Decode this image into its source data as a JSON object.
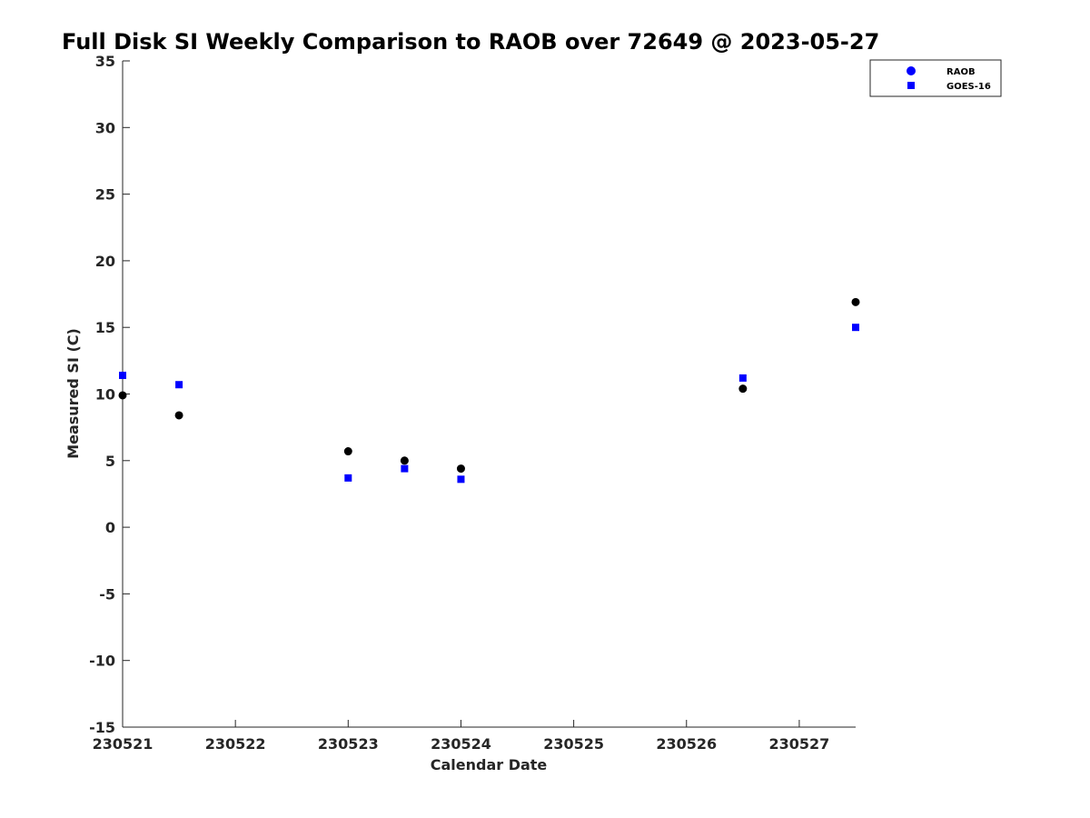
{
  "chart_data": {
    "type": "scatter",
    "title": "Full Disk SI Weekly Comparison to RAOB over 72649 @ 2023-05-27",
    "xlabel": "Calendar Date",
    "ylabel": "Measured SI (C)",
    "xlim": [
      0,
      6.5
    ],
    "ylim": [
      -15,
      35
    ],
    "x_tick_values": [
      0,
      1,
      2,
      3,
      4,
      5,
      6
    ],
    "x_tick_labels": [
      "230521",
      "230522",
      "230523",
      "230524",
      "230525",
      "230526",
      "230527"
    ],
    "y_ticks": [
      35,
      30,
      25,
      20,
      15,
      10,
      5,
      0,
      -5,
      -10,
      -15
    ],
    "legend_position": "top-right",
    "series": [
      {
        "name": "RAOB",
        "marker": "circle",
        "marker_color": "#000000",
        "legend_color": "#0000ff",
        "points": [
          {
            "x": 0.0,
            "y": 9.9
          },
          {
            "x": 0.5,
            "y": 8.4
          },
          {
            "x": 2.0,
            "y": 5.7
          },
          {
            "x": 2.5,
            "y": 5.0
          },
          {
            "x": 3.0,
            "y": 4.4
          },
          {
            "x": 5.5,
            "y": 10.4
          },
          {
            "x": 6.5,
            "y": 16.9
          }
        ]
      },
      {
        "name": "GOES-16",
        "marker": "square",
        "marker_color": "#0000ff",
        "legend_color": "#0000ff",
        "points": [
          {
            "x": 0.0,
            "y": 11.4
          },
          {
            "x": 0.5,
            "y": 10.7
          },
          {
            "x": 2.0,
            "y": 3.7
          },
          {
            "x": 2.5,
            "y": 4.4
          },
          {
            "x": 3.0,
            "y": 3.6
          },
          {
            "x": 5.5,
            "y": 11.2
          },
          {
            "x": 6.5,
            "y": 15.0
          }
        ]
      }
    ]
  }
}
